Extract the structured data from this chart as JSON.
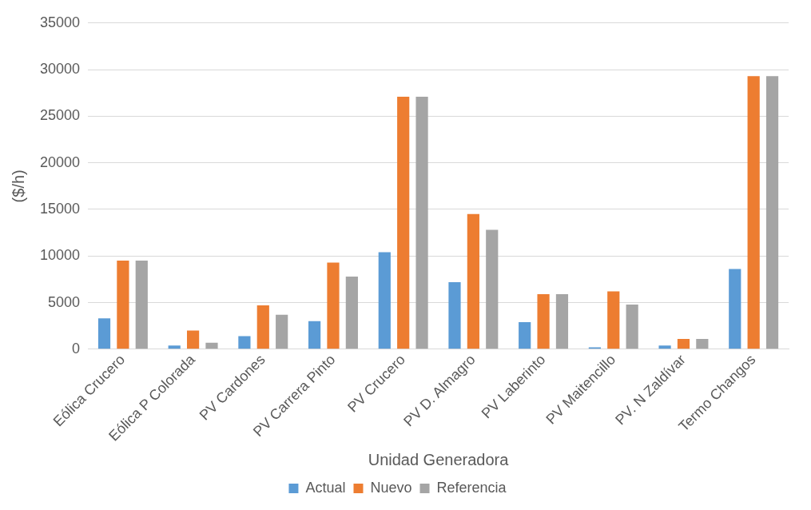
{
  "chart_data": {
    "type": "bar",
    "xlabel": "Unidad Generadora",
    "ylabel": "($/h)",
    "categories": [
      "Eólica Crucero",
      "Eólica P Colorada",
      "PV Cardones",
      "PV Carrera Pinto",
      "PV Crucero",
      "PV D. Almagro",
      "PV Laberinto",
      "PV Maitencillo",
      "PV. N Zaldívar",
      "Termo Changos"
    ],
    "series": [
      {
        "name": "Actual",
        "color": "#5b9bd5",
        "values": [
          3300,
          400,
          1400,
          3000,
          10400,
          7200,
          2900,
          200,
          400,
          8600
        ]
      },
      {
        "name": "Nuevo",
        "color": "#ed7d31",
        "values": [
          9500,
          2000,
          4700,
          9300,
          27100,
          14500,
          5900,
          6200,
          1100,
          29300
        ]
      },
      {
        "name": "Referencia",
        "color": "#a5a5a5",
        "values": [
          9500,
          700,
          3700,
          7800,
          27100,
          12800,
          5900,
          4800,
          1100,
          29300
        ]
      }
    ],
    "ylim": [
      0,
      35000
    ],
    "yticks": [
      0,
      5000,
      10000,
      15000,
      20000,
      25000,
      30000,
      35000
    ],
    "grid": "y",
    "legend": "bottom"
  }
}
